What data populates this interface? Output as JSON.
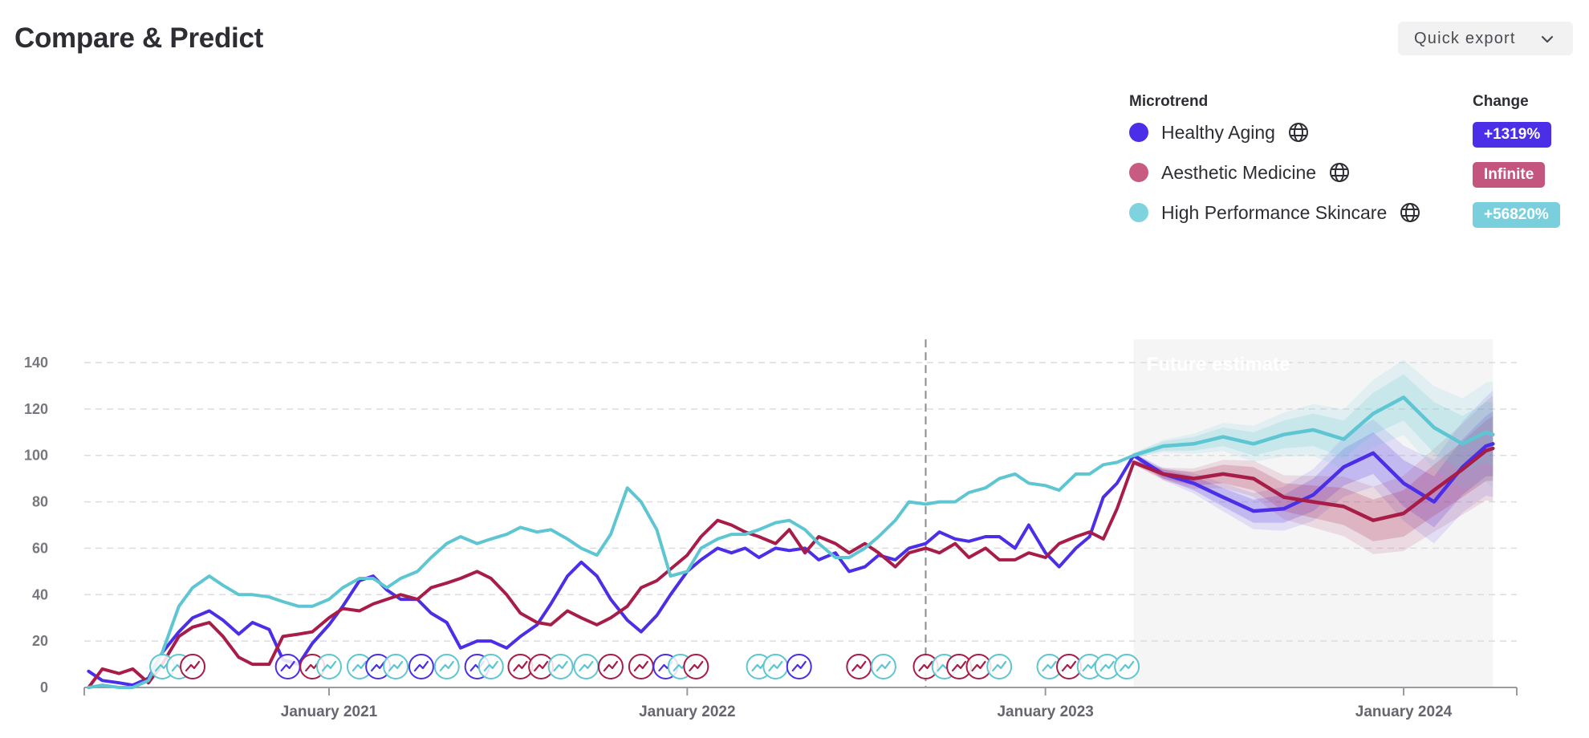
{
  "header": {
    "title": "Compare & Predict",
    "export_label": "Quick export"
  },
  "legend": {
    "microtrend_header": "Microtrend",
    "change_header": "Change",
    "items": [
      {
        "name": "Healthy Aging",
        "color": "#4a2ee8",
        "change": "+1319%",
        "badge_color": "#4a2ee8"
      },
      {
        "name": "Aesthetic Medicine",
        "color": "#c85b82",
        "change": "Infinite",
        "badge_color": "#c4557e"
      },
      {
        "name": "High Performance Skincare",
        "color": "#7fd3de",
        "change": "+56820%",
        "badge_color": "#79d0dc"
      }
    ]
  },
  "chart_data": {
    "type": "line",
    "title": "",
    "xlabel": "",
    "ylabel": "",
    "ylim": [
      0,
      150
    ],
    "xlim": [
      "2020-05-01",
      "2024-04-01"
    ],
    "y_ticks": [
      0,
      20,
      40,
      60,
      80,
      100,
      120,
      140
    ],
    "x_ticks": [
      {
        "label": "January 2021",
        "date": "2021-01-01"
      },
      {
        "label": "January 2022",
        "date": "2022-01-01"
      },
      {
        "label": "January 2023",
        "date": "2023-01-01"
      },
      {
        "label": "January 2024",
        "date": "2024-01-01"
      }
    ],
    "grid": "horizontal-dashed",
    "reference_line": "2022-09-01",
    "future_region": {
      "start": "2023-04-01",
      "end": "2024-04-01",
      "label": "Future estimate"
    },
    "series": [
      {
        "name": "Healthy Aging",
        "color": "#4a2ee8",
        "points": [
          [
            "2020-05-01",
            7
          ],
          [
            "2020-05-15",
            3
          ],
          [
            "2020-06-01",
            2
          ],
          [
            "2020-06-15",
            1
          ],
          [
            "2020-07-01",
            4
          ],
          [
            "2020-07-15",
            15
          ],
          [
            "2020-08-01",
            24
          ],
          [
            "2020-08-15",
            30
          ],
          [
            "2020-09-01",
            33
          ],
          [
            "2020-09-15",
            29
          ],
          [
            "2020-10-01",
            23
          ],
          [
            "2020-10-15",
            28
          ],
          [
            "2020-11-01",
            25
          ],
          [
            "2020-11-15",
            12
          ],
          [
            "2020-12-01",
            10
          ],
          [
            "2020-12-15",
            19
          ],
          [
            "2021-01-01",
            27
          ],
          [
            "2021-01-15",
            35
          ],
          [
            "2021-02-01",
            46
          ],
          [
            "2021-02-15",
            48
          ],
          [
            "2021-03-01",
            42
          ],
          [
            "2021-03-15",
            38
          ],
          [
            "2021-04-01",
            38
          ],
          [
            "2021-04-15",
            32
          ],
          [
            "2021-05-01",
            28
          ],
          [
            "2021-05-15",
            17
          ],
          [
            "2021-06-01",
            20
          ],
          [
            "2021-06-15",
            20
          ],
          [
            "2021-07-01",
            17
          ],
          [
            "2021-07-15",
            22
          ],
          [
            "2021-08-01",
            27
          ],
          [
            "2021-08-15",
            36
          ],
          [
            "2021-09-01",
            48
          ],
          [
            "2021-09-15",
            54
          ],
          [
            "2021-10-01",
            48
          ],
          [
            "2021-10-15",
            38
          ],
          [
            "2021-11-01",
            29
          ],
          [
            "2021-11-15",
            24
          ],
          [
            "2021-12-01",
            31
          ],
          [
            "2021-12-15",
            40
          ],
          [
            "2022-01-01",
            50
          ],
          [
            "2022-01-15",
            55
          ],
          [
            "2022-02-01",
            60
          ],
          [
            "2022-02-15",
            58
          ],
          [
            "2022-03-01",
            60
          ],
          [
            "2022-03-15",
            56
          ],
          [
            "2022-04-01",
            60
          ],
          [
            "2022-04-15",
            59
          ],
          [
            "2022-05-01",
            60
          ],
          [
            "2022-05-15",
            55
          ],
          [
            "2022-06-01",
            58
          ],
          [
            "2022-06-15",
            50
          ],
          [
            "2022-07-01",
            52
          ],
          [
            "2022-07-15",
            57
          ],
          [
            "2022-08-01",
            55
          ],
          [
            "2022-08-15",
            60
          ],
          [
            "2022-09-01",
            62
          ],
          [
            "2022-09-15",
            67
          ],
          [
            "2022-10-01",
            64
          ],
          [
            "2022-10-15",
            63
          ],
          [
            "2022-11-01",
            65
          ],
          [
            "2022-11-15",
            65
          ],
          [
            "2022-12-01",
            60
          ],
          [
            "2022-12-15",
            70
          ],
          [
            "2023-01-01",
            58
          ],
          [
            "2023-01-15",
            52
          ],
          [
            "2023-02-01",
            60
          ],
          [
            "2023-02-15",
            65
          ],
          [
            "2023-03-01",
            82
          ],
          [
            "2023-03-15",
            88
          ],
          [
            "2023-04-01",
            100
          ]
        ],
        "forecast": [
          [
            "2023-04-01",
            100
          ],
          [
            "2023-05-01",
            92
          ],
          [
            "2023-06-01",
            88
          ],
          [
            "2023-07-01",
            82
          ],
          [
            "2023-08-01",
            76
          ],
          [
            "2023-09-01",
            77
          ],
          [
            "2023-10-01",
            83
          ],
          [
            "2023-11-01",
            95
          ],
          [
            "2023-12-01",
            101
          ],
          [
            "2024-01-01",
            88
          ],
          [
            "2024-02-01",
            80
          ],
          [
            "2024-03-01",
            95
          ],
          [
            "2024-03-25",
            104
          ],
          [
            "2024-04-01",
            105
          ]
        ]
      },
      {
        "name": "Aesthetic Medicine",
        "color": "#a81c48",
        "points": [
          [
            "2020-05-01",
            0
          ],
          [
            "2020-05-15",
            8
          ],
          [
            "2020-06-01",
            6
          ],
          [
            "2020-06-15",
            8
          ],
          [
            "2020-07-01",
            2
          ],
          [
            "2020-07-15",
            10
          ],
          [
            "2020-08-01",
            22
          ],
          [
            "2020-08-15",
            26
          ],
          [
            "2020-09-01",
            28
          ],
          [
            "2020-09-15",
            22
          ],
          [
            "2020-10-01",
            13
          ],
          [
            "2020-10-15",
            10
          ],
          [
            "2020-11-01",
            10
          ],
          [
            "2020-11-15",
            22
          ],
          [
            "2020-12-01",
            23
          ],
          [
            "2020-12-15",
            24
          ],
          [
            "2021-01-01",
            30
          ],
          [
            "2021-01-15",
            34
          ],
          [
            "2021-02-01",
            33
          ],
          [
            "2021-02-15",
            36
          ],
          [
            "2021-03-01",
            38
          ],
          [
            "2021-03-15",
            40
          ],
          [
            "2021-04-01",
            38
          ],
          [
            "2021-04-15",
            43
          ],
          [
            "2021-05-01",
            45
          ],
          [
            "2021-05-15",
            47
          ],
          [
            "2021-06-01",
            50
          ],
          [
            "2021-06-15",
            47
          ],
          [
            "2021-07-01",
            40
          ],
          [
            "2021-07-15",
            32
          ],
          [
            "2021-08-01",
            28
          ],
          [
            "2021-08-15",
            27
          ],
          [
            "2021-09-01",
            33
          ],
          [
            "2021-09-15",
            30
          ],
          [
            "2021-10-01",
            27
          ],
          [
            "2021-10-15",
            30
          ],
          [
            "2021-11-01",
            35
          ],
          [
            "2021-11-15",
            43
          ],
          [
            "2021-12-01",
            46
          ],
          [
            "2021-12-15",
            51
          ],
          [
            "2022-01-01",
            57
          ],
          [
            "2022-01-15",
            65
          ],
          [
            "2022-02-01",
            72
          ],
          [
            "2022-02-15",
            70
          ],
          [
            "2022-03-01",
            67
          ],
          [
            "2022-03-15",
            65
          ],
          [
            "2022-04-01",
            62
          ],
          [
            "2022-04-15",
            68
          ],
          [
            "2022-05-01",
            58
          ],
          [
            "2022-05-15",
            65
          ],
          [
            "2022-06-01",
            62
          ],
          [
            "2022-06-15",
            58
          ],
          [
            "2022-07-01",
            62
          ],
          [
            "2022-07-15",
            58
          ],
          [
            "2022-08-01",
            52
          ],
          [
            "2022-08-15",
            58
          ],
          [
            "2022-09-01",
            60
          ],
          [
            "2022-09-15",
            58
          ],
          [
            "2022-10-01",
            62
          ],
          [
            "2022-10-15",
            56
          ],
          [
            "2022-11-01",
            60
          ],
          [
            "2022-11-15",
            55
          ],
          [
            "2022-12-01",
            55
          ],
          [
            "2022-12-15",
            58
          ],
          [
            "2023-01-01",
            56
          ],
          [
            "2023-01-15",
            62
          ],
          [
            "2023-02-01",
            65
          ],
          [
            "2023-02-15",
            67
          ],
          [
            "2023-03-01",
            64
          ],
          [
            "2023-03-15",
            77
          ],
          [
            "2023-04-01",
            97
          ]
        ],
        "forecast": [
          [
            "2023-04-01",
            97
          ],
          [
            "2023-05-01",
            92
          ],
          [
            "2023-06-01",
            90
          ],
          [
            "2023-07-01",
            92
          ],
          [
            "2023-08-01",
            90
          ],
          [
            "2023-09-01",
            82
          ],
          [
            "2023-10-01",
            80
          ],
          [
            "2023-11-01",
            78
          ],
          [
            "2023-12-01",
            72
          ],
          [
            "2024-01-01",
            75
          ],
          [
            "2024-02-01",
            85
          ],
          [
            "2024-03-01",
            94
          ],
          [
            "2024-03-25",
            102
          ],
          [
            "2024-04-01",
            103
          ]
        ]
      },
      {
        "name": "High Performance Skincare",
        "color": "#5ec6d2",
        "points": [
          [
            "2020-05-01",
            0
          ],
          [
            "2020-05-15",
            1
          ],
          [
            "2020-06-01",
            0
          ],
          [
            "2020-06-15",
            0
          ],
          [
            "2020-07-01",
            3
          ],
          [
            "2020-07-15",
            15
          ],
          [
            "2020-08-01",
            35
          ],
          [
            "2020-08-15",
            43
          ],
          [
            "2020-09-01",
            48
          ],
          [
            "2020-09-15",
            44
          ],
          [
            "2020-10-01",
            40
          ],
          [
            "2020-10-15",
            40
          ],
          [
            "2020-11-01",
            39
          ],
          [
            "2020-11-15",
            37
          ],
          [
            "2020-12-01",
            35
          ],
          [
            "2020-12-15",
            35
          ],
          [
            "2021-01-01",
            38
          ],
          [
            "2021-01-15",
            43
          ],
          [
            "2021-02-01",
            47
          ],
          [
            "2021-02-15",
            47
          ],
          [
            "2021-03-01",
            43
          ],
          [
            "2021-03-15",
            47
          ],
          [
            "2021-04-01",
            50
          ],
          [
            "2021-04-15",
            56
          ],
          [
            "2021-05-01",
            62
          ],
          [
            "2021-05-15",
            65
          ],
          [
            "2021-06-01",
            62
          ],
          [
            "2021-06-15",
            64
          ],
          [
            "2021-07-01",
            66
          ],
          [
            "2021-07-15",
            69
          ],
          [
            "2021-08-01",
            67
          ],
          [
            "2021-08-15",
            68
          ],
          [
            "2021-09-01",
            64
          ],
          [
            "2021-09-15",
            60
          ],
          [
            "2021-10-01",
            57
          ],
          [
            "2021-10-15",
            66
          ],
          [
            "2021-11-01",
            86
          ],
          [
            "2021-11-15",
            80
          ],
          [
            "2021-12-01",
            68
          ],
          [
            "2021-12-15",
            48
          ],
          [
            "2022-01-01",
            50
          ],
          [
            "2022-01-15",
            60
          ],
          [
            "2022-02-01",
            64
          ],
          [
            "2022-02-15",
            66
          ],
          [
            "2022-03-01",
            66
          ],
          [
            "2022-03-15",
            68
          ],
          [
            "2022-04-01",
            71
          ],
          [
            "2022-04-15",
            72
          ],
          [
            "2022-05-01",
            68
          ],
          [
            "2022-05-15",
            62
          ],
          [
            "2022-06-01",
            56
          ],
          [
            "2022-06-15",
            56
          ],
          [
            "2022-07-01",
            60
          ],
          [
            "2022-07-15",
            65
          ],
          [
            "2022-08-01",
            72
          ],
          [
            "2022-08-15",
            80
          ],
          [
            "2022-09-01",
            79
          ],
          [
            "2022-09-15",
            80
          ],
          [
            "2022-10-01",
            80
          ],
          [
            "2022-10-15",
            84
          ],
          [
            "2022-11-01",
            86
          ],
          [
            "2022-11-15",
            90
          ],
          [
            "2022-12-01",
            92
          ],
          [
            "2022-12-15",
            88
          ],
          [
            "2023-01-01",
            87
          ],
          [
            "2023-01-15",
            85
          ],
          [
            "2023-02-01",
            92
          ],
          [
            "2023-02-15",
            92
          ],
          [
            "2023-03-01",
            96
          ],
          [
            "2023-03-15",
            97
          ],
          [
            "2023-04-01",
            100
          ]
        ],
        "forecast": [
          [
            "2023-04-01",
            100
          ],
          [
            "2023-05-01",
            104
          ],
          [
            "2023-06-01",
            105
          ],
          [
            "2023-07-01",
            108
          ],
          [
            "2023-08-01",
            105
          ],
          [
            "2023-09-01",
            109
          ],
          [
            "2023-10-01",
            111
          ],
          [
            "2023-11-01",
            107
          ],
          [
            "2023-12-01",
            118
          ],
          [
            "2024-01-01",
            125
          ],
          [
            "2024-02-01",
            112
          ],
          [
            "2024-03-01",
            105
          ],
          [
            "2024-03-25",
            110
          ],
          [
            "2024-04-01",
            109
          ]
        ]
      }
    ]
  }
}
